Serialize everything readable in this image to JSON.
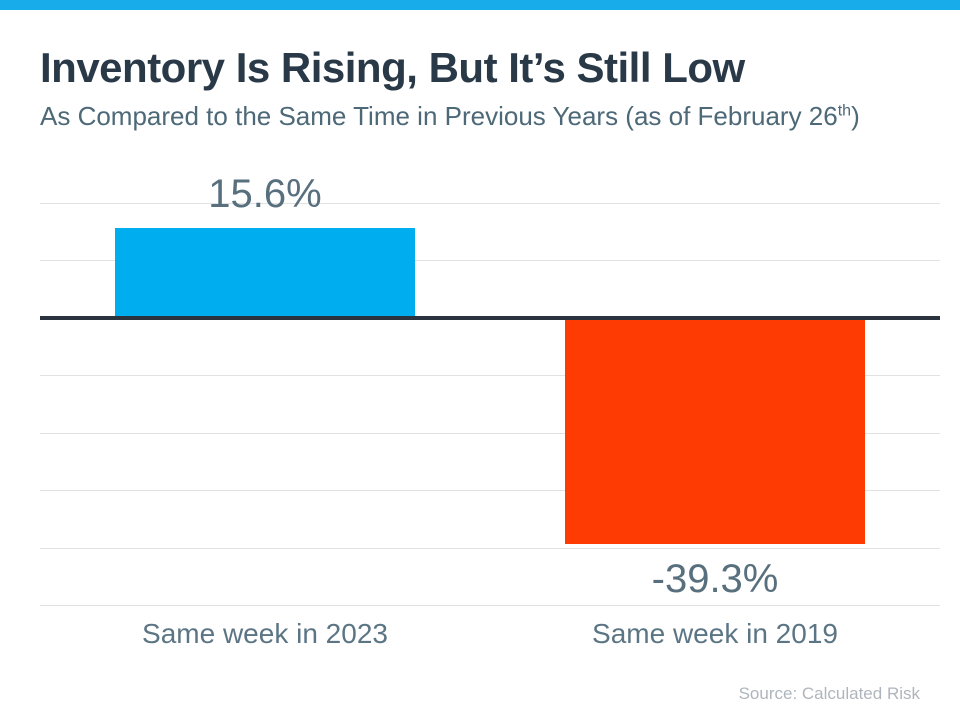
{
  "header": {
    "title": "Inventory Is Rising, But It’s Still Low",
    "subtitle_prefix": "As Compared to the Same Time in Previous Years (as of February 26",
    "subtitle_superscript": "th",
    "subtitle_suffix": ")"
  },
  "chart_data": {
    "type": "bar",
    "title": "Inventory Is Rising, But It’s Still Low",
    "subtitle": "As Compared to the Same Time in Previous Years (as of February 26th)",
    "categories": [
      "Same week in 2023",
      "Same week in 2019"
    ],
    "values": [
      15.6,
      -39.3
    ],
    "value_labels": [
      "15.6%",
      "-39.3%"
    ],
    "bar_colors": [
      "#00AEEF",
      "#FE3B02"
    ],
    "xlabel": "",
    "ylabel": "",
    "ylim": [
      -50,
      20
    ],
    "gridline_step": 10,
    "grid": true,
    "legend": "none",
    "baseline": 0
  },
  "footer": {
    "source": "Source: Calculated Risk"
  },
  "colors": {
    "banner_blue": "#18ACEA",
    "positive_bar_blue": "#00AEEF",
    "negative_bar_red": "#FE3B02",
    "zero_axis": "#2B343E",
    "gridline": "#E2E2E2"
  }
}
